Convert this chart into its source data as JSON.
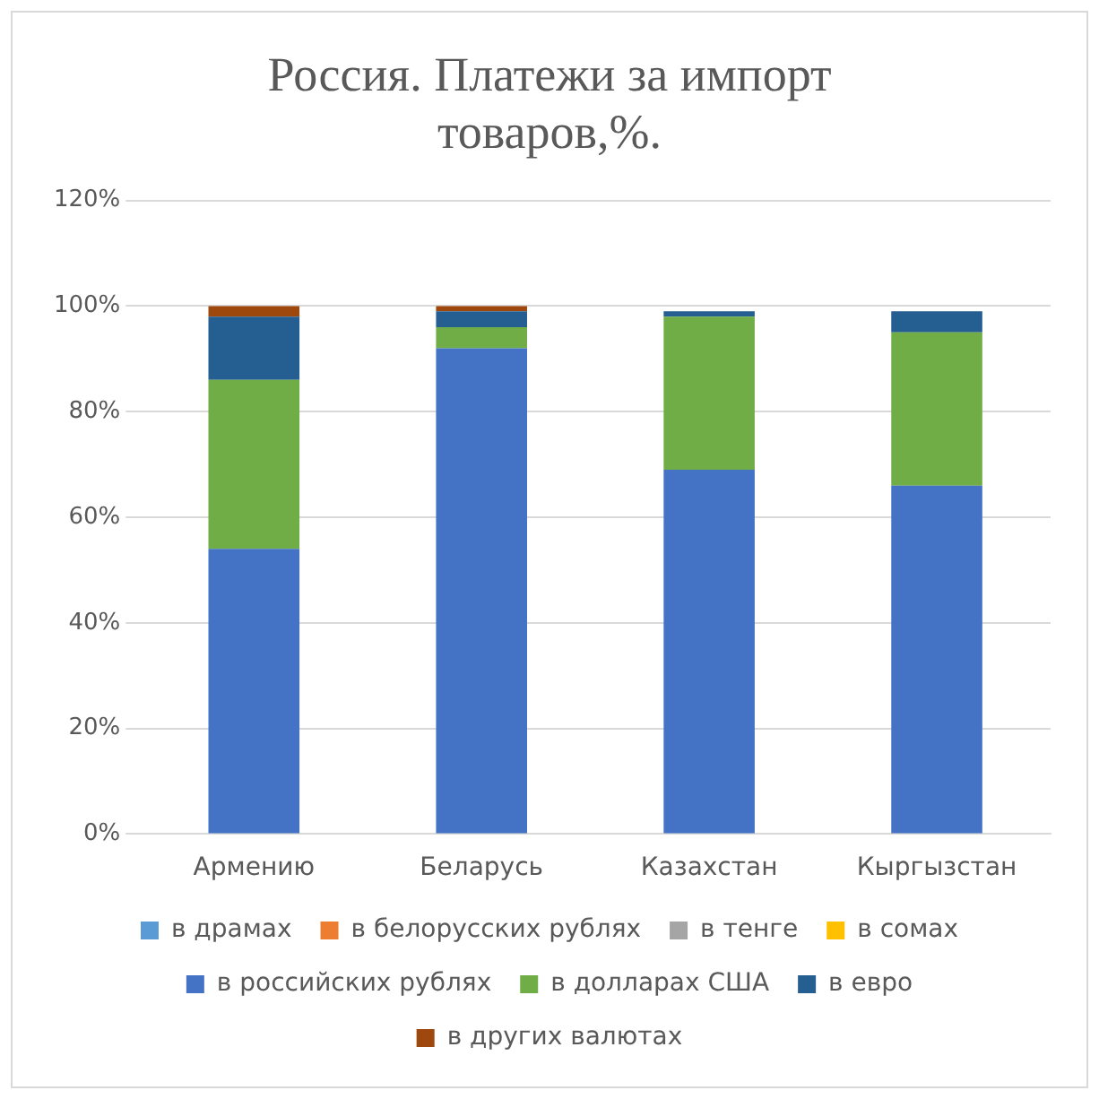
{
  "chart_data": {
    "type": "bar",
    "title": "Россия. Платежи за импорт товаров,%.",
    "categories": [
      "Армению",
      "Беларусь",
      "Казахстан",
      "Кыргызстан"
    ],
    "stacked": true,
    "series": [
      {
        "name": "в драмах",
        "color": "#5b9bd5",
        "values": [
          0,
          0,
          0,
          0
        ]
      },
      {
        "name": "в белорусских рублях",
        "color": "#ed7d31",
        "values": [
          0,
          0,
          0,
          0
        ]
      },
      {
        "name": "в тенге",
        "color": "#a5a5a5",
        "values": [
          0,
          0,
          0,
          0
        ]
      },
      {
        "name": "в сомах",
        "color": "#ffc000",
        "values": [
          0,
          0,
          0,
          0
        ]
      },
      {
        "name": "в российских рублях",
        "color": "#4472c4",
        "values": [
          54,
          92,
          69,
          66
        ]
      },
      {
        "name": "в долларах США",
        "color": "#70ad47",
        "values": [
          32,
          4,
          29,
          29
        ]
      },
      {
        "name": "в евро",
        "color": "#255e91",
        "values": [
          12,
          3,
          1,
          4
        ]
      },
      {
        "name": "в других валютах",
        "color": "#9e480e",
        "values": [
          2,
          1,
          0,
          0
        ]
      }
    ],
    "ylim": [
      0,
      120
    ],
    "yticks": [
      {
        "value": 0,
        "label": "0%"
      },
      {
        "value": 20,
        "label": "20%"
      },
      {
        "value": 40,
        "label": "40%"
      },
      {
        "value": 60,
        "label": "60%"
      },
      {
        "value": 80,
        "label": "80%"
      },
      {
        "value": 100,
        "label": "100%"
      },
      {
        "value": 120,
        "label": "120%"
      }
    ],
    "grid": "y",
    "legend": "bottom"
  }
}
